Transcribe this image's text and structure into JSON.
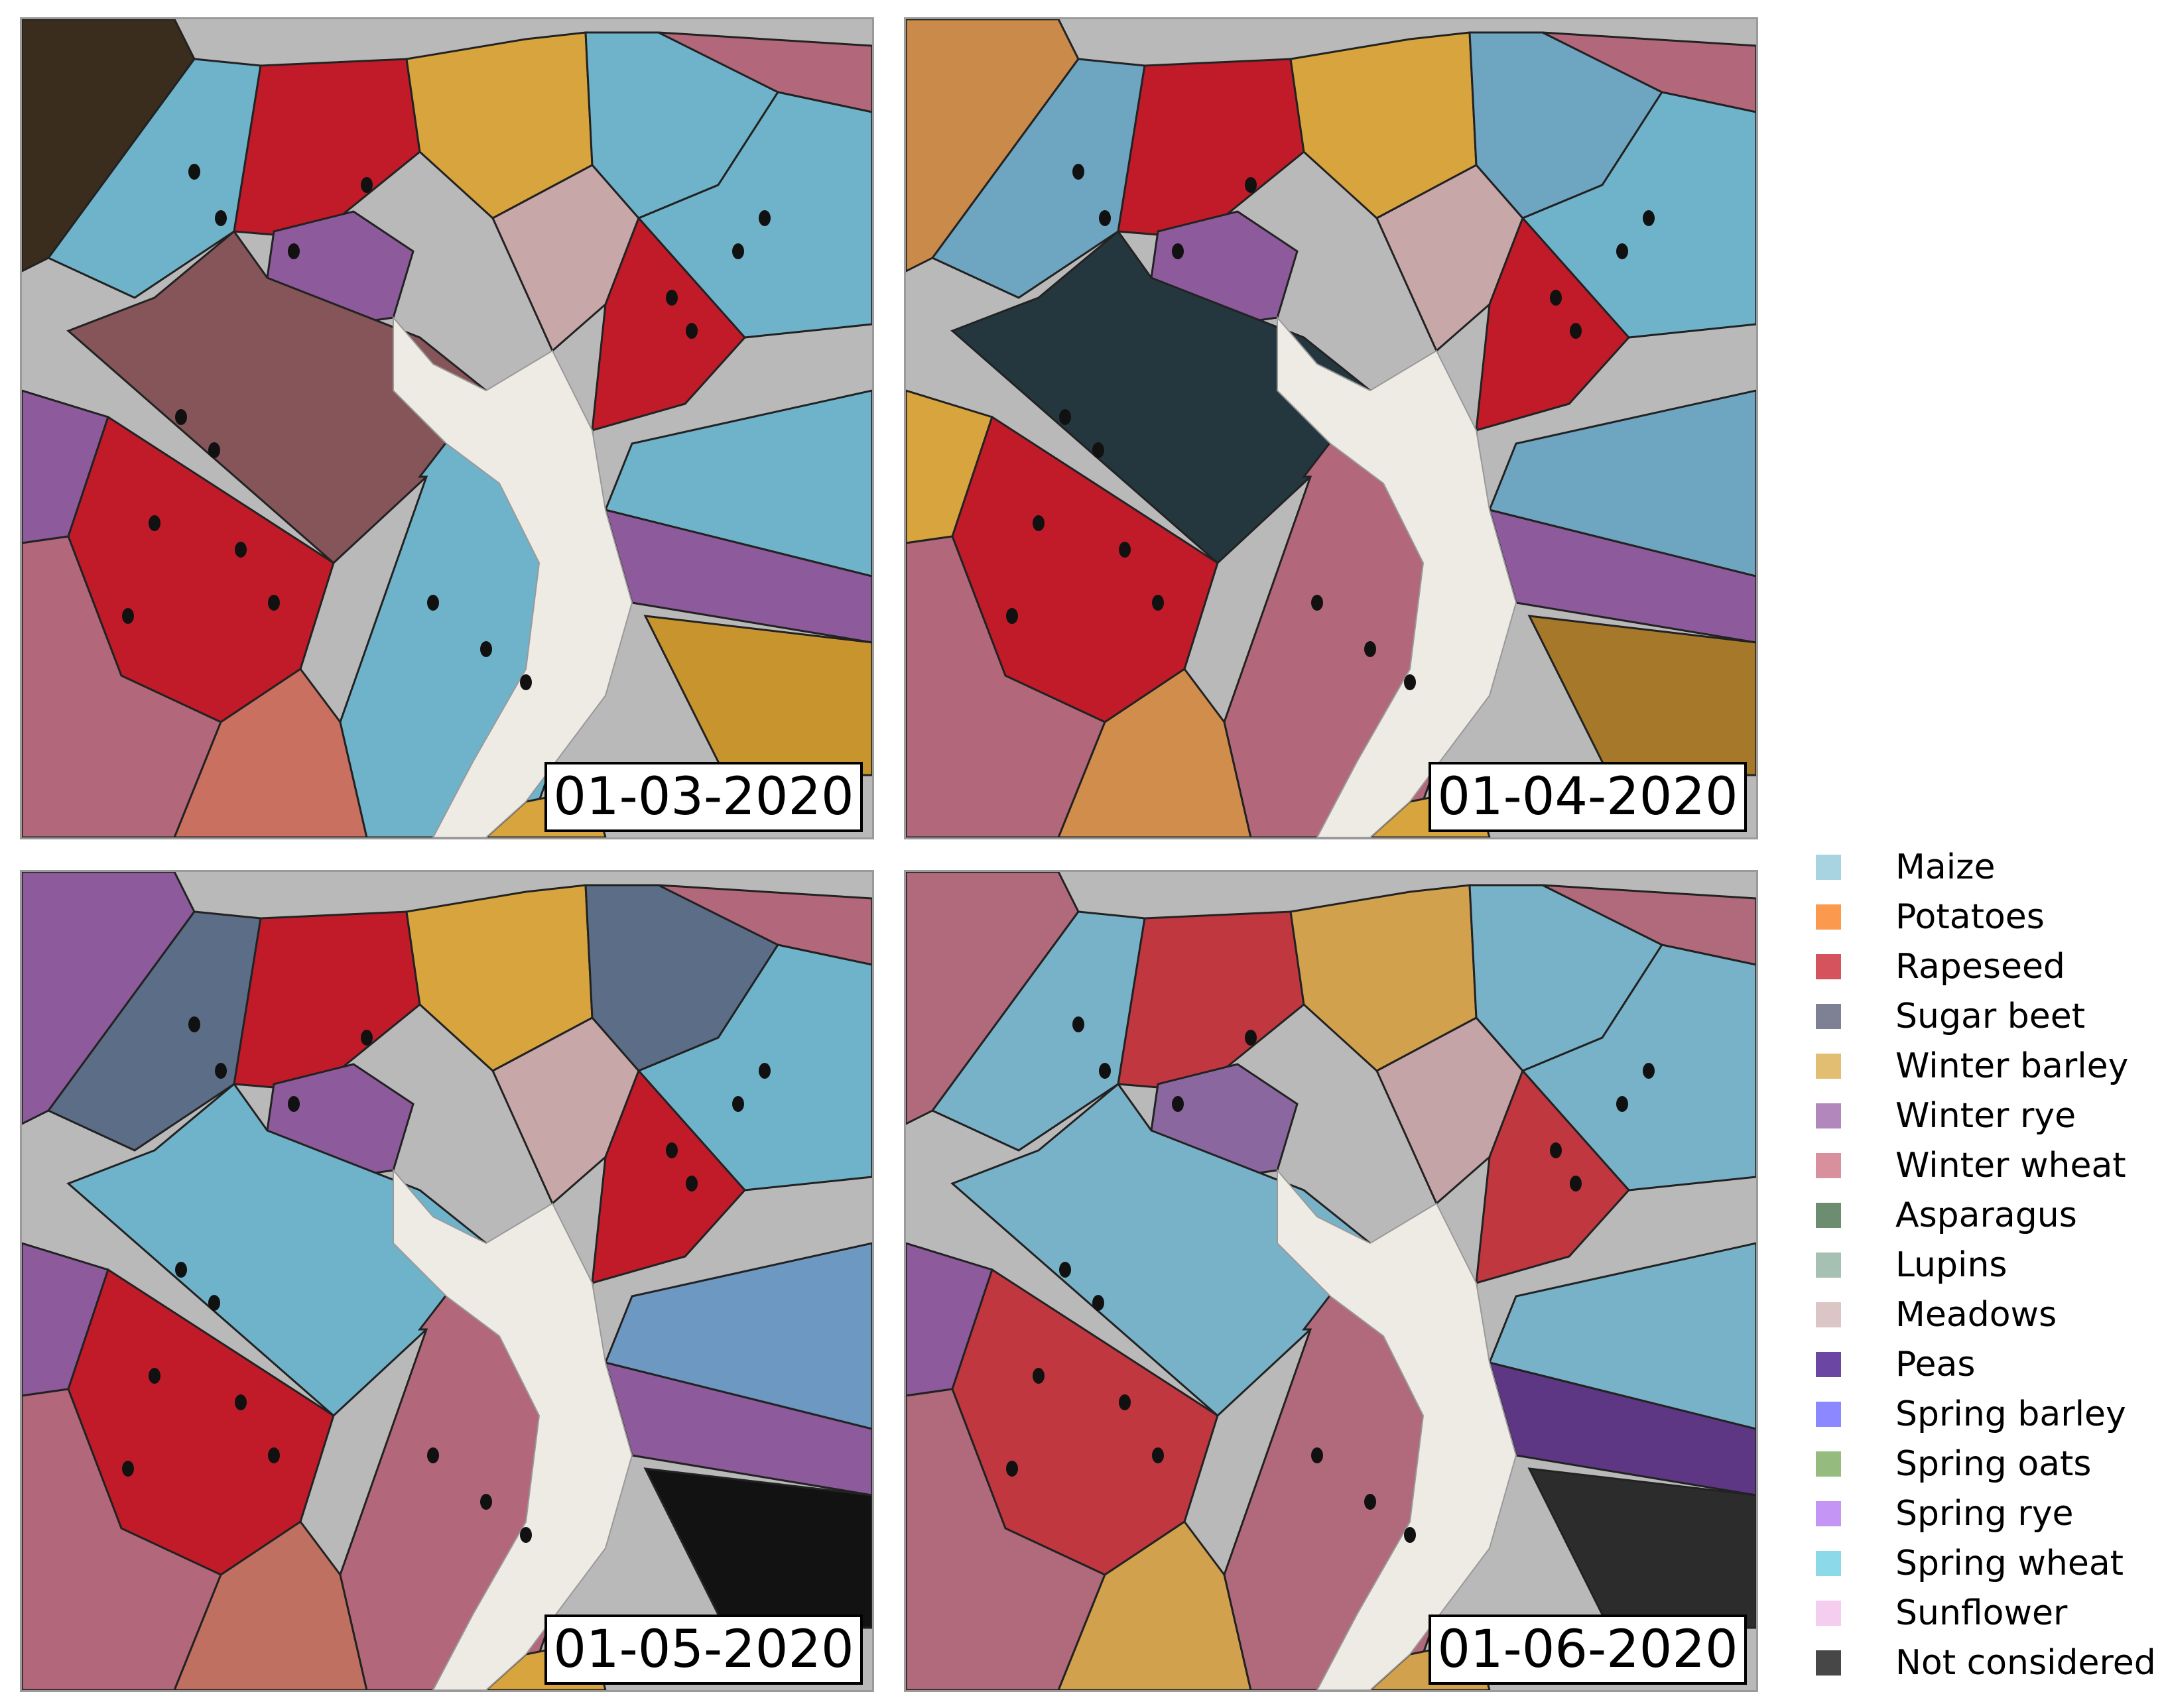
{
  "panels": [
    {
      "date": "01-03-2020",
      "fields": [
        "#3b2d1e",
        "#6fb3cb",
        "#c11b29",
        "#d8a43e",
        "#6fb3cb",
        "#b2687a",
        "#6fb3cb",
        "#8d5a9b",
        "#c8a7a8",
        "#855559",
        "#c11b29",
        "#8d5a9b",
        "#c11b29",
        "#b2687a",
        "#c97060",
        "#6fb3cb",
        "#8d5a9b",
        "#6fb3cb",
        "#c8942e",
        "#d8a43e"
      ]
    },
    {
      "date": "01-04-2020",
      "fields": [
        "#c98a4a",
        "#6ea5c1",
        "#c11b29",
        "#d8a43e",
        "#6ea5c1",
        "#b2687a",
        "#6fb3cb",
        "#8d5a9b",
        "#c8a7a8",
        "#24373e",
        "#c11b29",
        "#d8a43e",
        "#c11b29",
        "#b2687a",
        "#d18d4c",
        "#b2687a",
        "#8d5a9b",
        "#6ea5c1",
        "#a5782a",
        "#d8a43e"
      ]
    },
    {
      "date": "01-05-2020",
      "fields": [
        "#8d5a9b",
        "#5b6d87",
        "#c11b29",
        "#d8a43e",
        "#5b6d87",
        "#b2687a",
        "#6fb3cb",
        "#8d5a9b",
        "#c8a7a8",
        "#6fb3cb",
        "#c11b29",
        "#8d5a9b",
        "#c11b29",
        "#b2687a",
        "#bf7060",
        "#b2687a",
        "#8d5a9b",
        "#6d98c2",
        "#121212",
        "#d8a43e"
      ]
    },
    {
      "date": "01-06-2020",
      "fields": [
        "#b06a7c",
        "#78b2c8",
        "#c1373f",
        "#d2a14d",
        "#78b2c8",
        "#b06a7c",
        "#78b2c8",
        "#8a679e",
        "#c4a4a6",
        "#78b2c8",
        "#c1373f",
        "#8d5a9b",
        "#c1373f",
        "#b06a7c",
        "#d2a14d",
        "#b06a7c",
        "#5d3784",
        "#78b2c8",
        "#2c2c2c",
        "#d2a14d"
      ]
    }
  ],
  "legend": [
    {
      "label": "Maize",
      "color": "#a8d4e2"
    },
    {
      "label": "Potatoes",
      "color": "#fb9a4e"
    },
    {
      "label": "Rapeseed",
      "color": "#d4535c"
    },
    {
      "label": "Sugar beet",
      "color": "#7e8094"
    },
    {
      "label": "Winter barley",
      "color": "#e2be72"
    },
    {
      "label": "Winter rye",
      "color": "#b287bc"
    },
    {
      "label": "Winter wheat",
      "color": "#d9909d"
    },
    {
      "label": "Asparagus",
      "color": "#6c8d70"
    },
    {
      "label": "Lupins",
      "color": "#a7c0b4"
    },
    {
      "label": "Meadows",
      "color": "#dcc6c5"
    },
    {
      "label": "Peas",
      "color": "#6b47a3"
    },
    {
      "label": "Spring barley",
      "color": "#8c88ff"
    },
    {
      "label": "Spring oats",
      "color": "#96bb7f"
    },
    {
      "label": "Spring rye",
      "color": "#c595f5"
    },
    {
      "label": "Spring wheat",
      "color": "#8cd9ea"
    },
    {
      "label": "Sunflower",
      "color": "#f5cdee"
    },
    {
      "label": "Not considered",
      "color": "#474747"
    }
  ]
}
